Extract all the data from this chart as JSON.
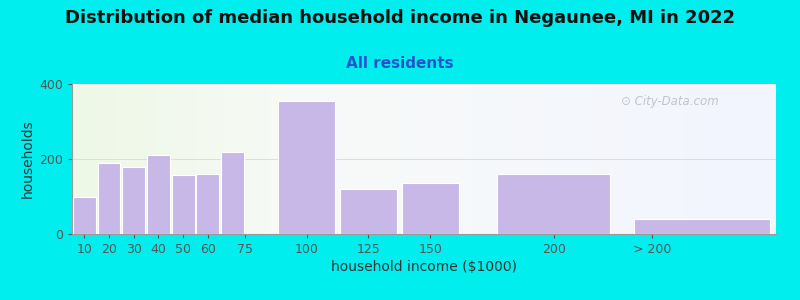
{
  "title": "Distribution of median household income in Negaunee, MI in 2022",
  "subtitle": "All residents",
  "xlabel": "household income ($1000)",
  "ylabel": "households",
  "background_outer": "#00EEEE",
  "bar_color": "#c8b8e8",
  "bar_edge_color": "#ffffff",
  "ylim": [
    0,
    400
  ],
  "yticks": [
    0,
    200,
    400
  ],
  "categories": [
    "10",
    "20",
    "30",
    "40",
    "50",
    "60",
    "75",
    "100",
    "125",
    "150",
    "200",
    "> 200"
  ],
  "values": [
    100,
    190,
    180,
    210,
    158,
    160,
    220,
    355,
    120,
    135,
    160,
    40
  ],
  "bar_lefts": [
    5,
    15,
    25,
    35,
    45,
    55,
    65,
    87.5,
    112.5,
    137.5,
    175,
    230
  ],
  "bar_widths": [
    10,
    10,
    10,
    10,
    10,
    10,
    10,
    25,
    25,
    25,
    50,
    60
  ],
  "xtick_positions": [
    10,
    20,
    30,
    40,
    50,
    60,
    75,
    100,
    125,
    150,
    200,
    240
  ],
  "xlim": [
    5,
    290
  ],
  "watermark": "City-Data.com",
  "title_fontsize": 13,
  "subtitle_fontsize": 11,
  "axis_label_fontsize": 10,
  "tick_fontsize": 9
}
